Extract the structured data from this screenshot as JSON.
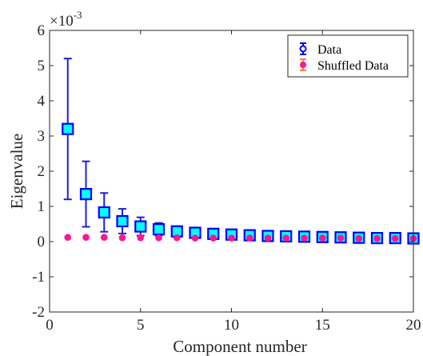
{
  "chart_data": {
    "type": "scatter",
    "xlabel": "Component number",
    "ylabel": "Eigenvalue",
    "exponent_base": "×10",
    "exponent_power": "-3",
    "xlim": [
      0,
      20
    ],
    "ylim": [
      -2,
      6
    ],
    "y_scale": "×10^-3",
    "xticks": [
      0,
      5,
      10,
      15,
      20
    ],
    "yticks": [
      -2,
      -1,
      0,
      1,
      2,
      3,
      4,
      5,
      6
    ],
    "xtick_labels": [
      "0",
      "5",
      "10",
      "15",
      "20"
    ],
    "ytick_labels": [
      "-2",
      "-1",
      "0",
      "1",
      "2",
      "3",
      "4",
      "5",
      "6"
    ],
    "grid": false,
    "legend_placement": "top-right",
    "series": [
      {
        "name": "Data",
        "marker": "square",
        "face_color": "#00ffff",
        "edge_color": "#0000ff",
        "error_color": "#1f1fd6",
        "x": [
          1,
          2,
          3,
          4,
          5,
          6,
          7,
          8,
          9,
          10,
          11,
          12,
          13,
          14,
          15,
          16,
          17,
          18,
          19,
          20
        ],
        "y": [
          3.2,
          1.35,
          0.83,
          0.58,
          0.43,
          0.35,
          0.29,
          0.25,
          0.22,
          0.2,
          0.18,
          0.16,
          0.15,
          0.14,
          0.13,
          0.12,
          0.11,
          0.1,
          0.1,
          0.09
        ],
        "err": [
          2.0,
          0.93,
          0.55,
          0.35,
          0.26,
          0.18,
          0.12,
          0.08,
          0.07,
          0.06,
          0.05,
          0.04,
          0.04,
          0.03,
          0.03,
          0.03,
          0.02,
          0.02,
          0.02,
          0.02
        ]
      },
      {
        "name": "Shuffled Data",
        "marker": "circle",
        "face_color": "#ff1493",
        "edge_color": "#ff1493",
        "error_color": "#ff7f2a",
        "x": [
          1,
          2,
          3,
          4,
          5,
          6,
          7,
          8,
          9,
          10,
          11,
          12,
          13,
          14,
          15,
          16,
          17,
          18,
          19,
          20
        ],
        "y": [
          0.12,
          0.12,
          0.12,
          0.11,
          0.11,
          0.11,
          0.11,
          0.1,
          0.1,
          0.1,
          0.1,
          0.1,
          0.1,
          0.1,
          0.1,
          0.1,
          0.09,
          0.09,
          0.09,
          0.09
        ],
        "err": [
          0.03,
          0.03,
          0.03,
          0.03,
          0.03,
          0.03,
          0.03,
          0.03,
          0.03,
          0.03,
          0.03,
          0.03,
          0.03,
          0.03,
          0.03,
          0.03,
          0.03,
          0.03,
          0.03,
          0.03
        ]
      }
    ]
  }
}
